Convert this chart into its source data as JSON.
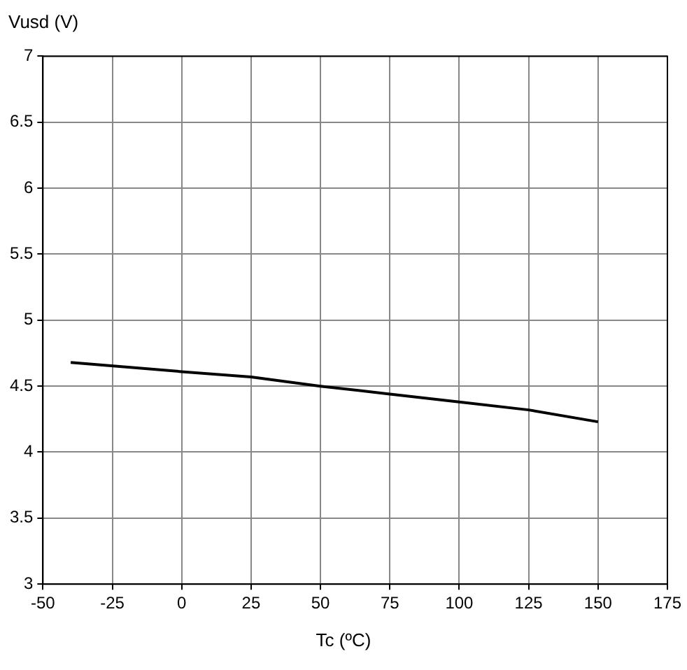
{
  "chart_data": {
    "type": "line",
    "xlabel": "Tc (ºC)",
    "ylabel": "Vusd (V)",
    "x": [
      -40,
      0,
      25,
      50,
      75,
      100,
      125,
      150
    ],
    "series": [
      {
        "color": "#000000",
        "values": [
          4.68,
          4.61,
          4.57,
          4.5,
          4.44,
          4.38,
          4.32,
          4.23
        ]
      }
    ],
    "xlim": [
      -50,
      175
    ],
    "xticks": [
      -50,
      -25,
      0,
      25,
      50,
      75,
      100,
      125,
      150,
      175
    ],
    "ylim": [
      3,
      7
    ],
    "yticks": [
      3,
      3.5,
      4,
      4.5,
      5,
      5.5,
      6,
      6.5,
      7
    ],
    "grid": true,
    "legend": false,
    "marker": "none",
    "line_style": "solid"
  }
}
